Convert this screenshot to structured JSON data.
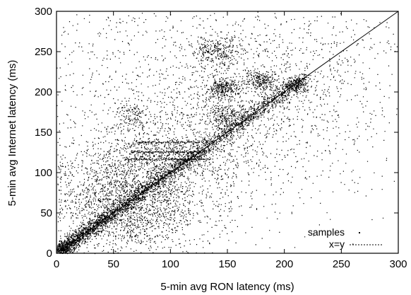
{
  "chart_data": {
    "type": "scatter",
    "xlabel": "5-min avg RON latency (ms)",
    "ylabel": "5-min avg Internet latency (ms)",
    "xlim": [
      0,
      300
    ],
    "ylim": [
      0,
      300
    ],
    "xticks": [
      "0",
      "50",
      "100",
      "150",
      "200",
      "250",
      "300"
    ],
    "yticks": [
      "0",
      "50",
      "100",
      "150",
      "200",
      "250",
      "300"
    ],
    "grid": false,
    "legend_position": "bottom-right",
    "series": [
      {
        "name": "samples",
        "kind": "points",
        "color": "#000000",
        "clusters": [
          {
            "cx": 60,
            "cy": 62,
            "sx": 32,
            "sy": 36,
            "weight": 0.33
          },
          {
            "cx": 100,
            "cy": 108,
            "sx": 40,
            "sy": 40,
            "weight": 0.12
          },
          {
            "cx": 145,
            "cy": 205,
            "sx": 7,
            "sy": 6,
            "weight": 0.05
          },
          {
            "cx": 180,
            "cy": 215,
            "sx": 7,
            "sy": 6,
            "weight": 0.04
          },
          {
            "cx": 210,
            "cy": 208,
            "sx": 5,
            "sy": 5,
            "weight": 0.03
          },
          {
            "cx": 140,
            "cy": 250,
            "sx": 12,
            "sy": 10,
            "weight": 0.05
          },
          {
            "cx": 150,
            "cy": 170,
            "sx": 9,
            "sy": 8,
            "weight": 0.04
          },
          {
            "cx": 100,
            "cy": 125,
            "sx": 25,
            "sy": 10,
            "weight": 0.05
          },
          {
            "cx": 65,
            "cy": 170,
            "sx": 8,
            "sy": 10,
            "weight": 0.02
          },
          {
            "cx": 150,
            "cy": 170,
            "sx": 70,
            "sy": 70,
            "weight": 0.17
          },
          {
            "cx": 190,
            "cy": 190,
            "sx": 55,
            "sy": 55,
            "weight": 0.1
          }
        ],
        "line_segments": [
          {
            "x1": 60,
            "x2": 135,
            "y": 117
          },
          {
            "x1": 70,
            "x2": 125,
            "y": 138
          },
          {
            "x1": 65,
            "x2": 130,
            "y": 126
          }
        ],
        "diagonal_fraction": 0.35,
        "diagonal_spread": 4,
        "point_count": 9000
      },
      {
        "name": "x=y",
        "kind": "line",
        "style": "dashed",
        "color": "#000000",
        "x": [
          0,
          300
        ],
        "y": [
          0,
          300
        ]
      }
    ]
  }
}
